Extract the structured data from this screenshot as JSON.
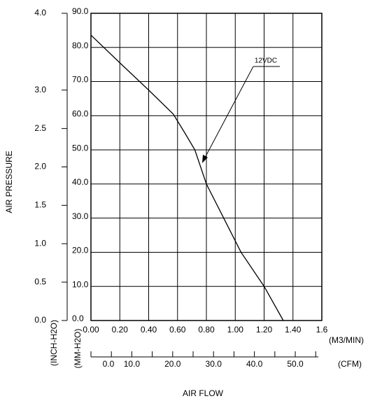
{
  "chart_data": {
    "type": "line",
    "x": [
      0.0,
      0.2,
      0.4,
      0.57,
      0.65,
      0.72,
      0.8,
      0.92,
      1.04,
      1.2,
      1.333
    ],
    "series": [
      {
        "color": "#000000",
        "values": [
          83.6,
          75.5,
          67.5,
          60.5,
          55,
          50,
          40,
          30,
          20,
          10,
          0
        ]
      }
    ],
    "xlim": [
      0,
      1.6
    ],
    "xticks": [
      {
        "value": 0,
        "label": "0.00"
      },
      {
        "value": 0.2,
        "label": "0.20"
      },
      {
        "value": 0.4,
        "label": "0.40"
      },
      {
        "value": 0.6,
        "label": "0.60"
      },
      {
        "value": 0.8,
        "label": "0.80"
      },
      {
        "value": 1.0,
        "label": "1.00"
      },
      {
        "value": 1.2,
        "label": "1.20"
      },
      {
        "value": 1.4,
        "label": "1.40"
      },
      1.6
    ],
    "x_unit": "(M3/MIN)",
    "x2lim": [
      0,
      56.5
    ],
    "x2ticks": [
      {
        "value": 0,
        "label": "0.0"
      },
      {
        "value": 10,
        "label": "10.0"
      },
      {
        "value": 20,
        "label": "20.0"
      },
      {
        "value": 30,
        "label": "30.0"
      },
      {
        "value": 40,
        "label": "40.0"
      },
      {
        "value": 50,
        "label": "50.0"
      }
    ],
    "x2minor_ticks": [
      5,
      15,
      25,
      35,
      45,
      55
    ],
    "x2_unit": "(CFM)",
    "xlabel": "AIR FLOW",
    "ylim": [
      0,
      90
    ],
    "yticks": [
      {
        "value": 0,
        "label": "0.0"
      },
      {
        "value": 10,
        "label": "10.0"
      },
      {
        "value": 20,
        "label": "20.0"
      },
      {
        "value": 30,
        "label": "30.0"
      },
      {
        "value": 40,
        "label": "40.0"
      },
      {
        "value": 50,
        "label": "50.0"
      },
      {
        "value": 60,
        "label": "60.0"
      },
      {
        "value": 70,
        "label": "70.0"
      },
      {
        "value": 80,
        "label": "80.0"
      },
      {
        "value": 90,
        "label": "90.0"
      }
    ],
    "y_unit": "(MM-H2O)",
    "y2lim": [
      0,
      4.0
    ],
    "y2ticks": [
      {
        "value": 0,
        "label": "0.0"
      },
      {
        "value": 0.5,
        "label": "0.5"
      },
      {
        "value": 1.0,
        "label": "1.0"
      },
      {
        "value": 1.5,
        "label": "1.5"
      },
      {
        "value": 2.0,
        "label": "2.0"
      },
      {
        "value": 2.5,
        "label": "2.5"
      },
      {
        "value": 3.0,
        "label": "3.0"
      },
      {
        "value": 4.0,
        "label": "4.0"
      }
    ],
    "y2_unit": "(INCH-H2O)",
    "ylabel": "AIR PRESSURE",
    "annotation": "12VDC",
    "grid": true
  }
}
